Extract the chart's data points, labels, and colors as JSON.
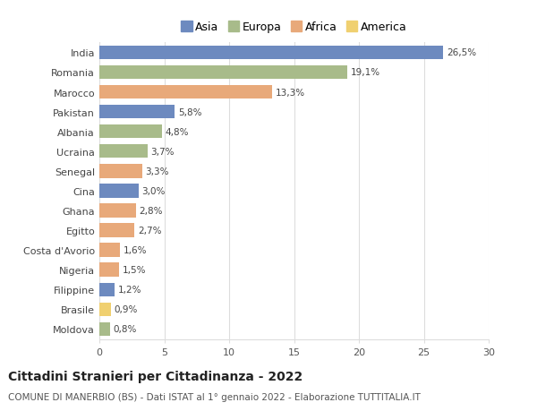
{
  "countries": [
    "India",
    "Romania",
    "Marocco",
    "Pakistan",
    "Albania",
    "Ucraina",
    "Senegal",
    "Cina",
    "Ghana",
    "Egitto",
    "Costa d'Avorio",
    "Nigeria",
    "Filippine",
    "Brasile",
    "Moldova"
  ],
  "values": [
    26.5,
    19.1,
    13.3,
    5.8,
    4.8,
    3.7,
    3.3,
    3.0,
    2.8,
    2.7,
    1.6,
    1.5,
    1.2,
    0.9,
    0.8
  ],
  "labels": [
    "26,5%",
    "19,1%",
    "13,3%",
    "5,8%",
    "4,8%",
    "3,7%",
    "3,3%",
    "3,0%",
    "2,8%",
    "2,7%",
    "1,6%",
    "1,5%",
    "1,2%",
    "0,9%",
    "0,8%"
  ],
  "continent": [
    "Asia",
    "Europa",
    "Africa",
    "Asia",
    "Europa",
    "Europa",
    "Africa",
    "Asia",
    "Africa",
    "Africa",
    "Africa",
    "Africa",
    "Asia",
    "America",
    "Europa"
  ],
  "colors": {
    "Asia": "#6d8abf",
    "Europa": "#a8bb8a",
    "Africa": "#e8a97a",
    "America": "#f0d070"
  },
  "legend_order": [
    "Asia",
    "Europa",
    "Africa",
    "America"
  ],
  "title": "Cittadini Stranieri per Cittadinanza - 2022",
  "subtitle": "COMUNE DI MANERBIO (BS) - Dati ISTAT al 1° gennaio 2022 - Elaborazione TUTTITALIA.IT",
  "xlim": [
    0,
    30
  ],
  "xticks": [
    0,
    5,
    10,
    15,
    20,
    25,
    30
  ],
  "background_color": "#ffffff",
  "grid_color": "#dddddd",
  "bar_height": 0.7,
  "title_fontsize": 10,
  "subtitle_fontsize": 7.5,
  "label_fontsize": 7.5,
  "tick_fontsize": 8,
  "legend_fontsize": 9
}
